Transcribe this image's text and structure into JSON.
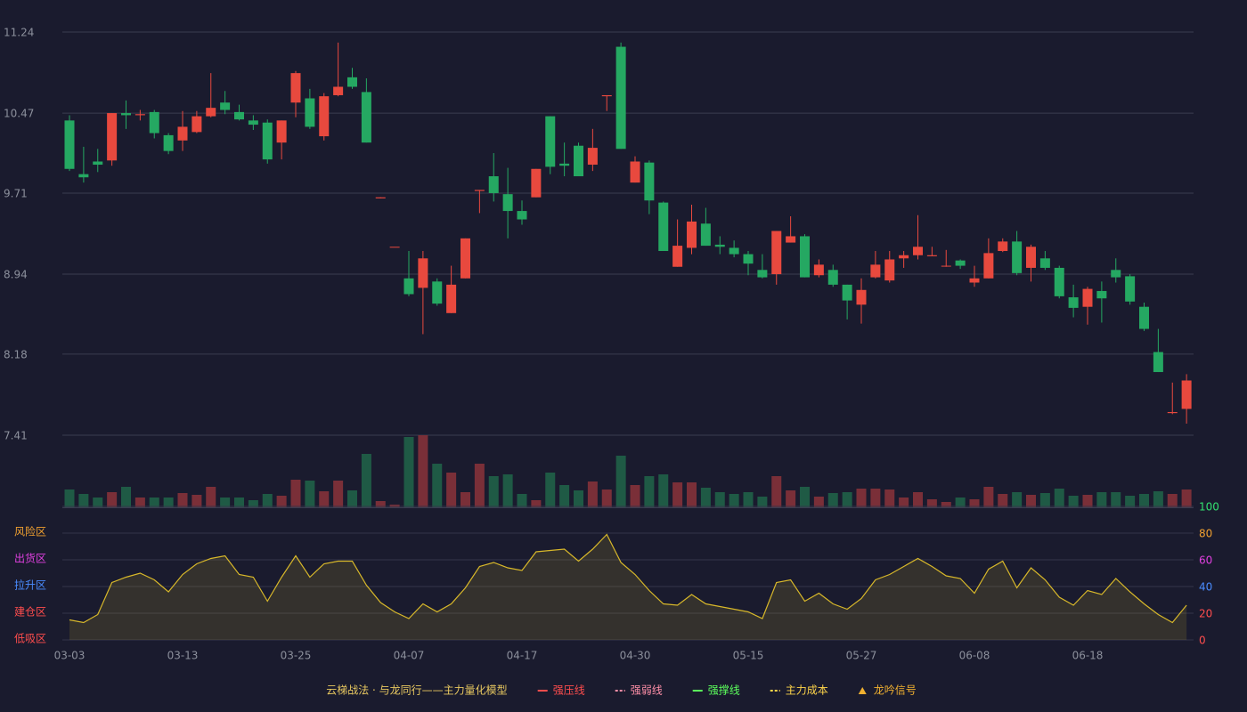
{
  "chart_data": [
    {
      "type": "candlestick",
      "categories": [
        "03-03",
        null,
        null,
        null,
        null,
        null,
        null,
        null,
        "03-13",
        null,
        null,
        null,
        null,
        null,
        null,
        null,
        "03-25",
        null,
        null,
        null,
        null,
        null,
        null,
        null,
        "04-07",
        null,
        null,
        null,
        null,
        null,
        null,
        null,
        "04-17",
        null,
        null,
        null,
        null,
        null,
        null,
        null,
        "04-30",
        null,
        null,
        null,
        null,
        null,
        null,
        null,
        "05-15",
        null,
        null,
        null,
        null,
        null,
        null,
        null,
        "05-27",
        null,
        null,
        null,
        null,
        null,
        null,
        null,
        "06-08",
        null,
        null,
        null,
        null,
        null,
        null,
        null,
        "06-18",
        null,
        null,
        null,
        null,
        null,
        null,
        null
      ],
      "open": [
        10.4,
        9.89,
        10.01,
        10.02,
        10.47,
        10.45,
        10.48,
        10.26,
        10.21,
        10.29,
        10.44,
        10.57,
        10.48,
        10.4,
        10.38,
        10.19,
        10.57,
        10.61,
        10.25,
        10.64,
        10.81,
        10.67,
        9.66,
        9.2,
        8.9,
        8.81,
        8.87,
        8.57,
        8.9,
        9.73,
        9.87,
        9.7,
        9.54,
        9.67,
        10.44,
        9.99,
        10.16,
        9.98,
        10.63,
        11.1,
        9.81,
        10.0,
        9.62,
        9.01,
        9.19,
        9.42,
        9.22,
        9.19,
        9.13,
        8.98,
        8.94,
        9.24,
        9.3,
        8.93,
        8.98,
        8.84,
        8.65,
        8.91,
        8.88,
        9.09,
        9.12,
        9.11,
        9.02,
        9.07,
        8.86,
        8.9,
        9.16,
        9.25,
        9.0,
        9.09,
        9.0,
        8.72,
        8.63,
        8.78,
        8.98,
        8.92,
        8.63,
        8.2,
        7.62,
        7.66
      ],
      "close": [
        9.94,
        9.86,
        9.98,
        10.47,
        10.45,
        10.46,
        10.28,
        10.11,
        10.34,
        10.44,
        10.52,
        10.5,
        10.41,
        10.36,
        10.03,
        10.4,
        10.85,
        10.34,
        10.63,
        10.72,
        10.72,
        10.19,
        9.67,
        9.2,
        8.75,
        9.09,
        8.66,
        8.84,
        9.28,
        9.74,
        9.71,
        9.54,
        9.46,
        9.94,
        9.96,
        9.97,
        9.87,
        10.14,
        10.64,
        10.13,
        10.01,
        9.64,
        9.16,
        9.21,
        9.44,
        9.21,
        9.2,
        9.13,
        9.04,
        8.91,
        9.35,
        9.3,
        8.91,
        9.03,
        8.84,
        8.69,
        8.79,
        9.03,
        9.08,
        9.12,
        9.2,
        9.12,
        9.02,
        9.02,
        8.9,
        9.14,
        9.25,
        8.95,
        9.2,
        9.0,
        8.73,
        8.62,
        8.8,
        8.71,
        8.91,
        8.68,
        8.42,
        8.01,
        7.63,
        7.93
      ],
      "high": [
        10.45,
        10.15,
        10.13,
        10.47,
        10.59,
        10.5,
        10.5,
        10.28,
        10.49,
        10.49,
        10.85,
        10.68,
        10.55,
        10.45,
        10.41,
        10.4,
        10.87,
        10.7,
        10.66,
        11.14,
        10.9,
        10.8,
        9.67,
        9.2,
        9.16,
        9.16,
        8.9,
        9.02,
        9.28,
        9.74,
        10.09,
        9.95,
        9.64,
        9.94,
        10.44,
        10.19,
        10.19,
        10.32,
        10.64,
        11.14,
        10.06,
        10.02,
        9.63,
        9.46,
        9.6,
        9.57,
        9.3,
        9.26,
        9.16,
        9.13,
        9.35,
        9.49,
        9.32,
        9.08,
        9.03,
        8.84,
        8.9,
        9.16,
        9.16,
        9.16,
        9.5,
        9.2,
        9.17,
        9.08,
        9.02,
        9.28,
        9.28,
        9.35,
        9.22,
        9.16,
        9.02,
        8.84,
        8.82,
        8.87,
        9.09,
        8.94,
        8.67,
        8.42,
        7.91,
        7.99
      ],
      "low": [
        9.92,
        9.81,
        9.91,
        9.97,
        10.32,
        10.4,
        10.23,
        10.08,
        10.11,
        10.28,
        10.43,
        10.46,
        10.4,
        10.31,
        9.99,
        10.03,
        10.43,
        10.32,
        10.21,
        10.63,
        10.7,
        10.19,
        9.66,
        9.2,
        8.73,
        8.37,
        8.64,
        8.57,
        8.9,
        9.52,
        9.63,
        9.28,
        9.41,
        9.67,
        9.89,
        9.87,
        9.87,
        9.92,
        10.49,
        10.13,
        9.81,
        9.51,
        9.16,
        9.01,
        9.13,
        9.21,
        9.13,
        9.1,
        8.93,
        8.9,
        8.84,
        9.24,
        8.91,
        8.91,
        8.82,
        8.51,
        8.47,
        8.9,
        8.86,
        9.0,
        9.08,
        9.11,
        9.01,
        8.99,
        8.82,
        8.9,
        9.15,
        8.93,
        8.87,
        8.98,
        8.71,
        8.53,
        8.46,
        8.48,
        8.86,
        8.65,
        8.4,
        8.01,
        7.61,
        7.52
      ],
      "up_color": "#e8493e",
      "down_color": "#25a862",
      "ylim": [
        7.41,
        11.24
      ],
      "yticks": [
        11.24,
        10.47,
        9.71,
        8.94,
        8.18,
        7.41
      ],
      "grid": true
    },
    {
      "type": "bar",
      "values": [
        20,
        15,
        11,
        17,
        23,
        11,
        11,
        11,
        16,
        14,
        23,
        11,
        11,
        8,
        15,
        13,
        31,
        30,
        18,
        30,
        19,
        60,
        7,
        3,
        79,
        81,
        49,
        39,
        17,
        49,
        35,
        37,
        15,
        8,
        39,
        25,
        19,
        29,
        20,
        58,
        25,
        35,
        37,
        28,
        28,
        22,
        17,
        15,
        17,
        12,
        35,
        19,
        23,
        12,
        16,
        17,
        21,
        21,
        20,
        11,
        17,
        9,
        6,
        11,
        9,
        23,
        15,
        17,
        14,
        16,
        21,
        13,
        14,
        17,
        17,
        13,
        15,
        18,
        15,
        20
      ],
      "up_color": "#7a2f38",
      "down_color": "#1f5a45",
      "ylim": [
        0,
        82
      ]
    },
    {
      "type": "area",
      "values": [
        15,
        13,
        19,
        43,
        47,
        50,
        45,
        36,
        49,
        57,
        61,
        63,
        49,
        47,
        29,
        47,
        63,
        47,
        57,
        59,
        59,
        41,
        28,
        21,
        16,
        27,
        21,
        27,
        39,
        55,
        58,
        54,
        52,
        66,
        67,
        68,
        59,
        68,
        79,
        58,
        49,
        37,
        27,
        26,
        34,
        27,
        25,
        23,
        21,
        16,
        43,
        45,
        29,
        35,
        27,
        23,
        31,
        45,
        49,
        55,
        61,
        55,
        48,
        46,
        35,
        53,
        59,
        39,
        54,
        45,
        32,
        26,
        37,
        34,
        46,
        36,
        27,
        19,
        13,
        26
      ],
      "color": "#d8b82a",
      "ylim": [
        0,
        100
      ],
      "yticks": [
        0,
        20,
        40,
        60,
        80,
        100
      ],
      "ytick_colors": [
        "#ff4d4d",
        "#ff4d4d",
        "#4a8cff",
        "#e040e0",
        "#f0a030",
        "#33e070"
      ],
      "zones": [
        {
          "label": "低吸区",
          "value": 0,
          "color": "#ff4d4d"
        },
        {
          "label": "建仓区",
          "value": 20,
          "color": "#ff4d4d"
        },
        {
          "label": "拉升区",
          "value": 40,
          "color": "#4a8cff"
        },
        {
          "label": "出货区",
          "value": 60,
          "color": "#e040e0"
        },
        {
          "label": "风险区",
          "value": 80,
          "color": "#f0a030"
        }
      ]
    }
  ],
  "legend": {
    "title": "云梯战法 · 与龙同行——主力量化模型",
    "title_color": "#e8c860",
    "items": [
      {
        "name": "强压线",
        "color": "#ff4d4d",
        "style": "solid"
      },
      {
        "name": "强弱线",
        "color": "#ff8fa8",
        "style": "dashed"
      },
      {
        "name": "强撑线",
        "color": "#5cff5c",
        "style": "solid"
      },
      {
        "name": "主力成本",
        "color": "#ffd54a",
        "style": "dashed"
      },
      {
        "name": "龙吟信号",
        "color": "#f0b030",
        "style": "triangle"
      }
    ]
  }
}
